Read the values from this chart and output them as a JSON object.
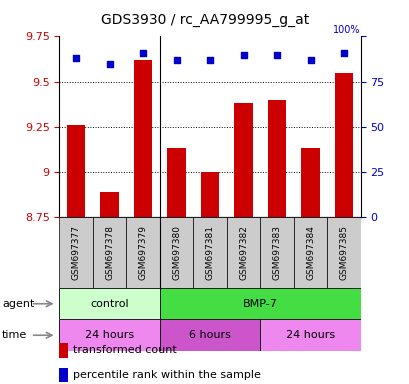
{
  "title": "GDS3930 / rc_AA799995_g_at",
  "samples": [
    "GSM697377",
    "GSM697378",
    "GSM697379",
    "GSM697380",
    "GSM697381",
    "GSM697382",
    "GSM697383",
    "GSM697384",
    "GSM697385"
  ],
  "bar_values": [
    9.26,
    8.89,
    9.62,
    9.13,
    9.0,
    9.38,
    9.4,
    9.13,
    9.55
  ],
  "bar_bottom": 8.75,
  "percentile_values": [
    88,
    85,
    91,
    87,
    87,
    90,
    90,
    87,
    91
  ],
  "ylim": [
    8.75,
    9.75
  ],
  "yticks": [
    8.75,
    9.0,
    9.25,
    9.5,
    9.75
  ],
  "right_yticks": [
    0,
    25,
    50,
    75,
    100
  ],
  "bar_color": "#cc0000",
  "dot_color": "#0000cc",
  "agent_row": [
    {
      "label": "control",
      "start": 0,
      "end": 3,
      "color": "#ccffcc"
    },
    {
      "label": "BMP-7",
      "start": 3,
      "end": 9,
      "color": "#44dd44"
    }
  ],
  "time_row": [
    {
      "label": "24 hours",
      "start": 0,
      "end": 3,
      "color": "#ee88ee"
    },
    {
      "label": "6 hours",
      "start": 3,
      "end": 6,
      "color": "#cc55cc"
    },
    {
      "label": "24 hours",
      "start": 6,
      "end": 9,
      "color": "#ee88ee"
    }
  ],
  "legend_items": [
    {
      "color": "#cc0000",
      "label": "transformed count"
    },
    {
      "color": "#0000cc",
      "label": "percentile rank within the sample"
    }
  ],
  "left_axis_color": "#cc0000",
  "right_axis_color": "#0000cc",
  "grid_color": "#555555",
  "sample_box_color": "#cccccc",
  "title_fontsize": 10,
  "tick_fontsize": 8,
  "legend_fontsize": 8,
  "sample_fontsize": 6.5,
  "label_fontsize": 8
}
